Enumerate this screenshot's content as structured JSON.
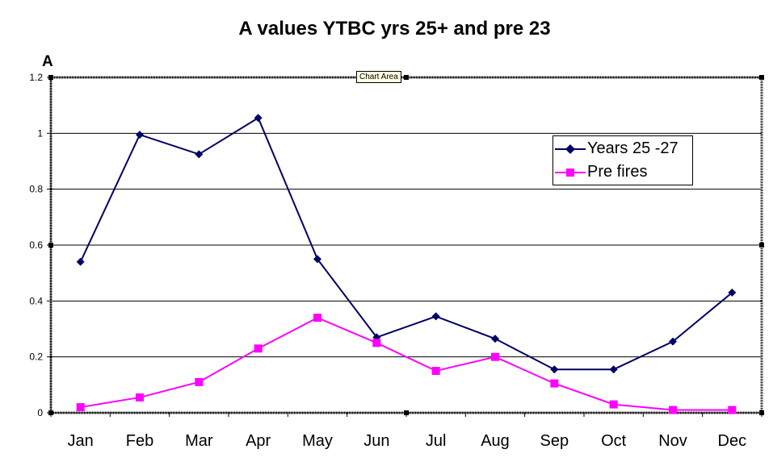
{
  "chart_data": {
    "type": "line",
    "title": "A values YTBC yrs 25+ and pre 23",
    "ylabel": "A",
    "xlabel": "",
    "categories": [
      "Jan",
      "Feb",
      "Mar",
      "Apr",
      "May",
      "Jun",
      "Jul",
      "Aug",
      "Sep",
      "Oct",
      "Nov",
      "Dec"
    ],
    "ylim": [
      0,
      1.2
    ],
    "yticks": [
      "0",
      "0.2",
      "0.4",
      "0.6",
      "0.8",
      "1",
      "1.2"
    ],
    "grid": true,
    "legend_position": "right",
    "series": [
      {
        "name": "Years 25 -27",
        "color": "#000066",
        "marker": "diamond",
        "values": [
          0.54,
          0.995,
          0.925,
          1.055,
          0.55,
          0.27,
          0.345,
          0.265,
          0.155,
          0.155,
          0.255,
          0.43
        ]
      },
      {
        "name": "Pre fires",
        "color": "#ff00ff",
        "marker": "square",
        "values": [
          0.02,
          0.055,
          0.11,
          0.23,
          0.34,
          0.25,
          0.15,
          0.2,
          0.105,
          0.03,
          0.01,
          0.01
        ]
      }
    ]
  },
  "tooltip": {
    "text": "Chart Area"
  }
}
